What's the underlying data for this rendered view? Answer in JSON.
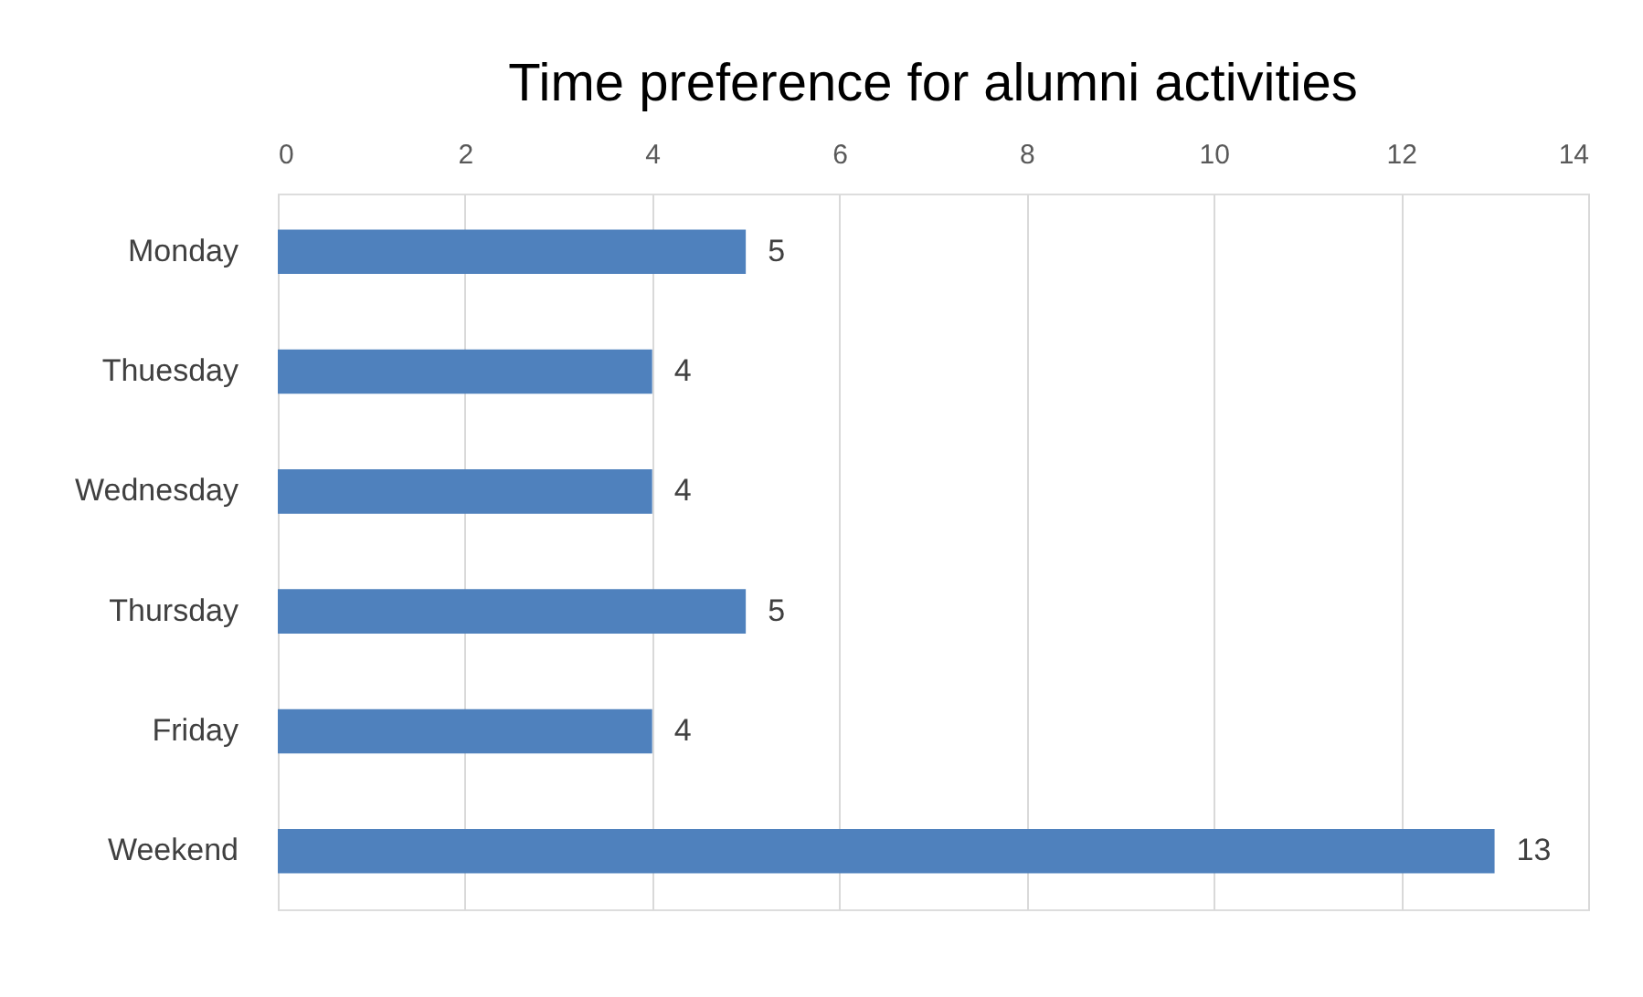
{
  "chart_data": {
    "type": "bar",
    "orientation": "horizontal",
    "title": "Time preference for alumni activities",
    "categories": [
      "Monday",
      "Thuesday",
      "Wednesday",
      "Thursday",
      "Friday",
      "Weekend"
    ],
    "values": [
      5,
      4,
      4,
      5,
      4,
      13
    ],
    "color": "#4f81bd",
    "xlim": [
      0,
      14
    ],
    "xticks": [
      0,
      2,
      4,
      6,
      8,
      10,
      12,
      14
    ],
    "grid": "x",
    "data_labels": true
  }
}
